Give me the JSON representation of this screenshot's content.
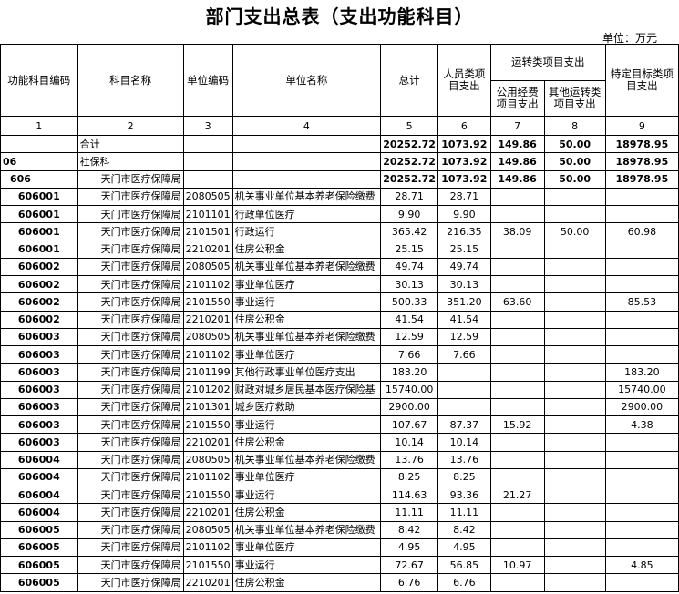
{
  "title": "部门支出总表（支出功能科目）",
  "unit": "单位：万元",
  "header": {
    "func_code": "功能科目编码",
    "subject_name": "科目名称",
    "unit_code": "单位编码",
    "unit_name": "单位名称",
    "total": "总计",
    "personnel": "人员类项目支出",
    "operation": "运转类项目支出",
    "public_fund": "公用经费项目支出",
    "other_operation": "其他运转类项目支出",
    "specific": "特定目标类项目支出"
  },
  "column_numbers": [
    "1",
    "2",
    "3",
    "4",
    "5",
    "6",
    "7",
    "8",
    "9"
  ],
  "rows": [
    [
      null,
      "合计",
      null,
      null,
      "20252.72",
      "1073.92",
      "149.86",
      "50.00",
      "18978.95"
    ],
    [
      "06",
      "社保科",
      null,
      null,
      "20252.72",
      "1073.92",
      "149.86",
      "50.00",
      "18978.95"
    ],
    [
      "606",
      "天门市医疗保障局",
      null,
      null,
      "20252.72",
      "1073.92",
      "149.86",
      "50.00",
      "18978.95"
    ],
    [
      "606001",
      "天门市医疗保障局",
      "2080505",
      "机关事业单位基本养老保险缴费",
      "28.71",
      "28.71",
      null,
      null,
      null
    ],
    [
      "606001",
      "天门市医疗保障局",
      "2101101",
      "行政单位医疗",
      "9.90",
      "9.90",
      null,
      null,
      null
    ],
    [
      "606001",
      "天门市医疗保障局",
      "2101501",
      "行政运行",
      "365.42",
      "216.35",
      "38.09",
      "50.00",
      "60.98"
    ],
    [
      "606001",
      "天门市医疗保障局",
      "2210201",
      "住房公积金",
      "25.15",
      "25.15",
      null,
      null,
      null
    ],
    [
      "606002",
      "天门市医疗保障局",
      "2080505",
      "机关事业单位基本养老保险缴费",
      "49.74",
      "49.74",
      null,
      null,
      null
    ],
    [
      "606002",
      "天门市医疗保障局",
      "2101102",
      "事业单位医疗",
      "30.13",
      "30.13",
      null,
      null,
      null
    ],
    [
      "606002",
      "天门市医疗保障局",
      "2101550",
      "事业运行",
      "500.33",
      "351.20",
      "63.60",
      null,
      "85.53"
    ],
    [
      "606002",
      "天门市医疗保障局",
      "2210201",
      "住房公积金",
      "41.54",
      "41.54",
      null,
      null,
      null
    ],
    [
      "606003",
      "天门市医疗保障局",
      "2080505",
      "机关事业单位基本养老保险缴费",
      "12.59",
      "12.59",
      null,
      null,
      null
    ],
    [
      "606003",
      "天门市医疗保障局",
      "2101102",
      "事业单位医疗",
      "7.66",
      "7.66",
      null,
      null,
      null
    ],
    [
      "606003",
      "天门市医疗保障局",
      "2101199",
      "其他行政事业单位医疗支出",
      "183.20",
      null,
      null,
      null,
      "183.20"
    ],
    [
      "606003",
      "天门市医疗保障局",
      "2101202",
      "财政对城乡居民基本医疗保险基",
      "15740.00",
      null,
      null,
      null,
      "15740.00"
    ],
    [
      "606003",
      "天门市医疗保障局",
      "2101301",
      "城乡医疗救助",
      "2900.00",
      null,
      null,
      null,
      "2900.00"
    ],
    [
      "606003",
      "天门市医疗保障局",
      "2101550",
      "事业运行",
      "107.67",
      "87.37",
      "15.92",
      null,
      "4.38"
    ],
    [
      "606003",
      "天门市医疗保障局",
      "2210201",
      "住房公积金",
      "10.14",
      "10.14",
      null,
      null,
      null
    ],
    [
      "606004",
      "天门市医疗保障局",
      "2080505",
      "机关事业单位基本养老保险缴费",
      "13.76",
      "13.76",
      null,
      null,
      null
    ],
    [
      "606004",
      "天门市医疗保障局",
      "2101102",
      "事业单位医疗",
      "8.25",
      "8.25",
      null,
      null,
      null
    ],
    [
      "606004",
      "天门市医疗保障局",
      "2101550",
      "事业运行",
      "114.63",
      "93.36",
      "21.27",
      null,
      null
    ],
    [
      "606004",
      "天门市医疗保障局",
      "2210201",
      "住房公积金",
      "11.11",
      "11.11",
      null,
      null,
      null
    ],
    [
      "606005",
      "天门市医疗保障局",
      "2080505",
      "机关事业单位基本养老保险缴费",
      "8.42",
      "8.42",
      null,
      null,
      null
    ],
    [
      "606005",
      "天门市医疗保障局",
      "2101102",
      "事业单位医疗",
      "4.95",
      "4.95",
      null,
      null,
      null
    ],
    [
      "606005",
      "天门市医疗保障局",
      "2101550",
      "事业运行",
      "72.67",
      "56.85",
      "10.97",
      null,
      "4.85"
    ],
    [
      "606005",
      "天门市医疗保障局",
      "2210201",
      "住房公积金",
      "6.76",
      "6.76",
      null,
      null,
      null
    ]
  ]
}
